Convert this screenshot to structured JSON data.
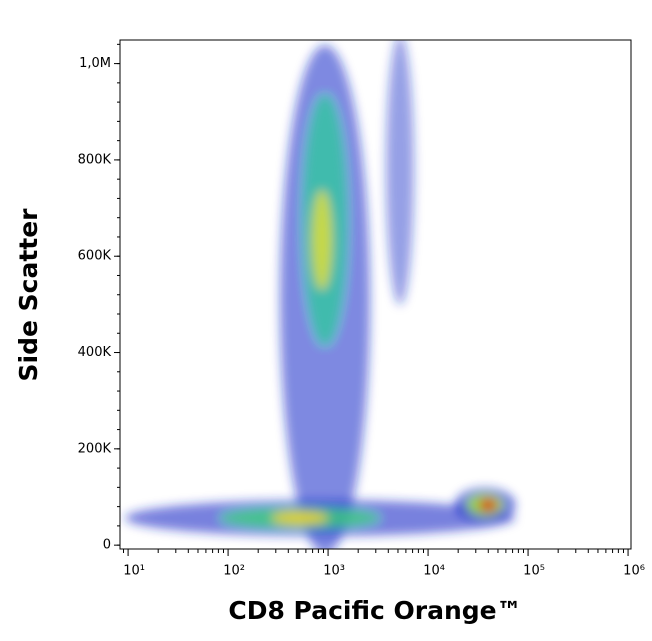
{
  "chart_data": {
    "type": "scatter",
    "x_label": "CD8 Pacific Orange™",
    "y_label": "Side Scatter",
    "x_scale": "log",
    "xlim": [
      8.3,
      1070000
    ],
    "xticks": [
      {
        "value": 10,
        "label": "10¹"
      },
      {
        "value": 100,
        "label": "10²"
      },
      {
        "value": 1000,
        "label": "10³"
      },
      {
        "value": 10000,
        "label": "10⁴"
      },
      {
        "value": 100000,
        "label": "10⁵"
      },
      {
        "value": 1000000,
        "label": "10⁶"
      }
    ],
    "ylim": [
      -8000,
      1049000
    ],
    "yticks": [
      0,
      {
        "value": 200000,
        "label": "200K"
      },
      {
        "value": 400000,
        "label": "400K"
      },
      {
        "value": 600000,
        "label": "600K"
      },
      {
        "value": 800000,
        "label": "800K"
      },
      {
        "value": 1000000,
        "label": "1,0M"
      }
    ]
  }
}
